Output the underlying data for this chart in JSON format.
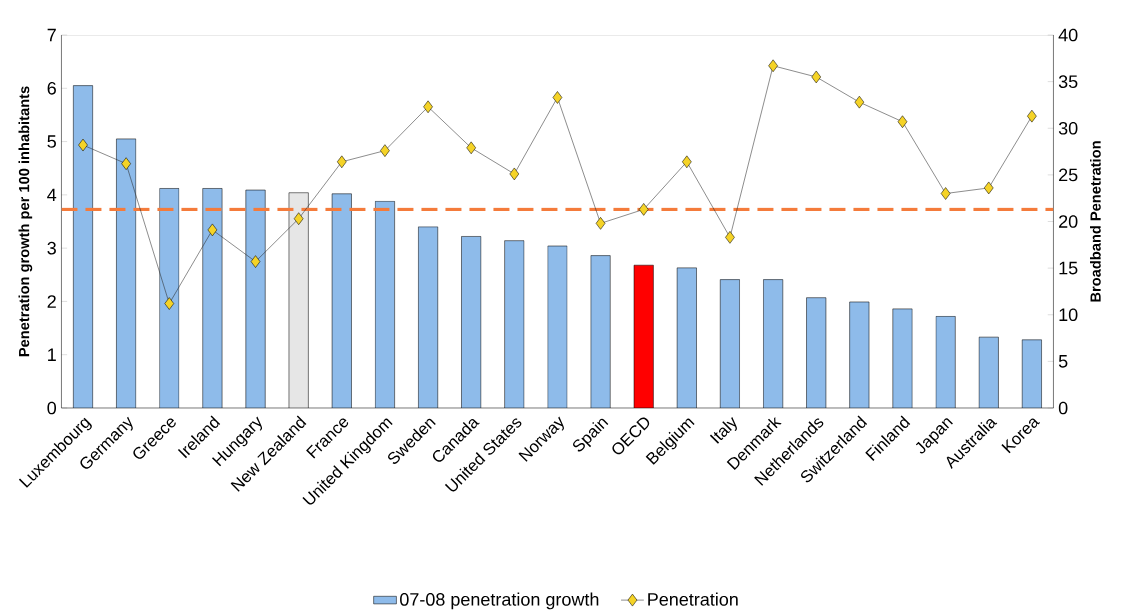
{
  "chart_data": {
    "type": "bar",
    "categories": [
      "Luxembourg",
      "Germany",
      "Greece",
      "Ireland",
      "Hungary",
      "New Zealand",
      "France",
      "United Kingdom",
      "Sweden",
      "Canada",
      "United States",
      "Norway",
      "Spain",
      "OECD",
      "Belgium",
      "Italy",
      "Denmark",
      "Netherlands",
      "Switzerland",
      "Finland",
      "Japan",
      "Australia",
      "Korea"
    ],
    "series": [
      {
        "name": "07-08 penetration growth",
        "colors": [
          "#8ebbea",
          "#8ebbea",
          "#8ebbea",
          "#8ebbea",
          "#8ebbea",
          "#e6e6e6",
          "#8ebbea",
          "#8ebbea",
          "#8ebbea",
          "#8ebbea",
          "#8ebbea",
          "#8ebbea",
          "#8ebbea",
          "#ff0000",
          "#8ebbea",
          "#8ebbea",
          "#8ebbea",
          "#8ebbea",
          "#8ebbea",
          "#8ebbea",
          "#8ebbea",
          "#8ebbea",
          "#8ebbea"
        ],
        "values": [
          6.05,
          5.05,
          4.12,
          4.12,
          4.09,
          4.04,
          4.02,
          3.88,
          3.4,
          3.22,
          3.14,
          3.04,
          2.86,
          2.68,
          2.63,
          2.41,
          2.41,
          2.07,
          1.99,
          1.86,
          1.72,
          1.33,
          1.28
        ]
      },
      {
        "name": "Penetration",
        "type": "line",
        "axis": "y2",
        "color": "#f5d327",
        "marker": "diamond",
        "line_style": "solid",
        "values": [
          28.2,
          26.2,
          11.2,
          19.1,
          15.7,
          20.3,
          26.4,
          27.6,
          32.3,
          27.9,
          25.1,
          33.3,
          19.8,
          21.3,
          26.4,
          18.3,
          36.7,
          35.5,
          32.8,
          30.7,
          23.0,
          23.6,
          31.3
        ]
      }
    ],
    "ylabel": "Penetration growth per 100 inhabitants",
    "y2label": "Broadband Penetration",
    "ylim": [
      0,
      7
    ],
    "yticks": [
      0,
      1,
      2,
      3,
      4,
      5,
      6,
      7
    ],
    "y2lim": [
      0,
      40
    ],
    "y2ticks": [
      0,
      5,
      10,
      15,
      20,
      25,
      30,
      35,
      40
    ],
    "ref_lines": [
      {
        "axis": "y2",
        "value": 21.3,
        "color": "#f47b3b",
        "line_style": "dashed"
      }
    ],
    "legend": "bottom"
  }
}
